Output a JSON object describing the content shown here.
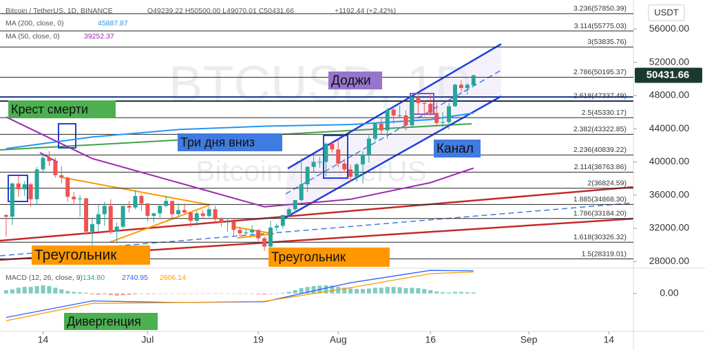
{
  "chart_data": {
    "type": "candlestick",
    "header": {
      "symbol": "Bitcoin / TetherUS, 1D, BINANCE",
      "ohlc": "O49239.22 H50500.00 L49070.01 C50431.66",
      "change": "+1192.44 (+2.42%)"
    },
    "currency": "USDT",
    "watermark": [
      "BTCUSD, 1D",
      "Bitcoin / TetherUS"
    ],
    "last_price_label": "50431.66",
    "up_color": "#26a69a",
    "down_color": "#ef5350",
    "x": [
      "Jun 8",
      "Jun 9",
      "Jun 10",
      "Jun 11",
      "Jun 12",
      "Jun 13",
      "Jun 14",
      "Jun 15",
      "Jun 16",
      "Jun 17",
      "Jun 18",
      "Jun 19",
      "Jun 20",
      "Jun 21",
      "Jun 22",
      "Jun 23",
      "Jun 24",
      "Jun 25",
      "Jun 26",
      "Jun 27",
      "Jun 28",
      "Jun 29",
      "Jun 30",
      "Jul 1",
      "Jul 2",
      "Jul 3",
      "Jul 4",
      "Jul 5",
      "Jul 6",
      "Jul 7",
      "Jul 8",
      "Jul 9",
      "Jul 10",
      "Jul 11",
      "Jul 12",
      "Jul 13",
      "Jul 14",
      "Jul 15",
      "Jul 16",
      "Jul 17",
      "Jul 18",
      "Jul 19",
      "Jul 20",
      "Jul 21",
      "Jul 22",
      "Jul 23",
      "Jul 24",
      "Jul 25",
      "Jul 26",
      "Jul 27",
      "Jul 28",
      "Jul 29",
      "Jul 30",
      "Jul 31",
      "Aug 1",
      "Aug 2",
      "Aug 3",
      "Aug 4",
      "Aug 5",
      "Aug 6",
      "Aug 7",
      "Aug 8",
      "Aug 9",
      "Aug 10",
      "Aug 11",
      "Aug 12",
      "Aug 13",
      "Aug 14",
      "Aug 15",
      "Aug 16",
      "Aug 17",
      "Aug 18",
      "Aug 19",
      "Aug 20",
      "Aug 21",
      "Aug 22",
      "Aug 23"
    ],
    "open": [
      33600,
      33400,
      37400,
      36700,
      37300,
      35500,
      39100,
      40500,
      40100,
      38400,
      38100,
      35800,
      35500,
      35600,
      31600,
      32500,
      33700,
      34700,
      31600,
      32200,
      34700,
      34500,
      35900,
      35000,
      33500,
      33800,
      34700,
      35300,
      33700,
      34200,
      33900,
      32900,
      33800,
      33500,
      34300,
      33100,
      32700,
      32800,
      31800,
      31400,
      31500,
      31800,
      30800,
      29800,
      32100,
      32300,
      33600,
      34300,
      35400,
      37300,
      39400,
      40000,
      40000,
      42200,
      41500,
      39800,
      39100,
      38200,
      39700,
      40900,
      42800,
      44600,
      43800,
      46300,
      45600,
      45600,
      44400,
      47800,
      47100,
      47000,
      45900,
      44700,
      44800,
      46700,
      49300,
      48900,
      49239.22
    ],
    "high": [
      33700,
      37500,
      38400,
      37700,
      37500,
      39400,
      41000,
      41300,
      40500,
      39500,
      38200,
      36400,
      36000,
      35700,
      33300,
      34800,
      35200,
      35500,
      32700,
      34700,
      35300,
      36600,
      36100,
      35000,
      33900,
      34900,
      35900,
      35300,
      35000,
      35000,
      33900,
      34100,
      34200,
      34600,
      34700,
      33300,
      33100,
      33200,
      32200,
      31900,
      32400,
      31900,
      31000,
      32900,
      32600,
      33600,
      34500,
      35400,
      40500,
      39500,
      40900,
      40600,
      42300,
      42400,
      42600,
      40400,
      39700,
      39900,
      41300,
      43200,
      44700,
      45300,
      46500,
      46700,
      46800,
      46200,
      47900,
      48200,
      47400,
      48100,
      47200,
      46000,
      47100,
      49400,
      49800,
      49500,
      50500
    ],
    "low": [
      31000,
      32400,
      35800,
      35900,
      34600,
      34800,
      38800,
      39500,
      38100,
      37400,
      35200,
      34800,
      33400,
      31300,
      28800,
      31700,
      32300,
      31300,
      30200,
      32000,
      33900,
      34300,
      34100,
      32800,
      32700,
      33300,
      34500,
      33200,
      33500,
      33800,
      32100,
      32300,
      33100,
      33300,
      32700,
      32200,
      31600,
      31100,
      31000,
      31200,
      31100,
      30400,
      29300,
      29500,
      31700,
      32000,
      33400,
      33900,
      35200,
      36400,
      38800,
      39300,
      38300,
      41100,
      39400,
      38700,
      37600,
      37600,
      37400,
      39900,
      42500,
      43400,
      42800,
      44600,
      45400,
      43800,
      44200,
      45800,
      45500,
      45600,
      44400,
      44200,
      43900,
      46600,
      48300,
      48100,
      49070.01
    ],
    "close": [
      33400,
      37400,
      36700,
      37300,
      35500,
      39100,
      40500,
      40100,
      38400,
      38100,
      35800,
      35500,
      35600,
      31600,
      32500,
      33700,
      34700,
      31600,
      32200,
      34700,
      34500,
      35900,
      35000,
      33500,
      33800,
      34700,
      35300,
      33700,
      34200,
      33900,
      32900,
      33800,
      33500,
      34300,
      33100,
      32700,
      32800,
      31800,
      31400,
      31500,
      31800,
      30800,
      29800,
      32100,
      32300,
      33600,
      34300,
      35400,
      37300,
      39400,
      40000,
      40000,
      42200,
      41500,
      39800,
      39100,
      38200,
      39700,
      40900,
      42800,
      44600,
      43800,
      46300,
      45600,
      45600,
      44400,
      47800,
      47100,
      47000,
      45900,
      44700,
      44800,
      46700,
      49300,
      48900,
      49300,
      50431.66
    ],
    "ylim": [
      27200,
      59500
    ],
    "yticks": [
      {
        "value": 28000,
        "label": "28000.00"
      },
      {
        "value": 32000,
        "label": "32000.00"
      },
      {
        "value": 36000,
        "label": "36000.00"
      },
      {
        "value": 40000,
        "label": "40000.00"
      },
      {
        "value": 44000,
        "label": "44000.00"
      },
      {
        "value": 48000,
        "label": "48000.00"
      },
      {
        "value": 52000,
        "label": "52000.00"
      },
      {
        "value": 56000,
        "label": "56000.00"
      }
    ],
    "xlim": [
      "Jun 7",
      "Sep 18"
    ],
    "xticks": [
      {
        "value": "Jun 14",
        "label": "14"
      },
      {
        "value": "Jul 1",
        "label": "Jul"
      },
      {
        "value": "Jul 19",
        "label": "19"
      },
      {
        "value": "Aug 1",
        "label": "Aug"
      },
      {
        "value": "Aug 16",
        "label": "16"
      },
      {
        "value": "Sep 1",
        "label": "Sep"
      },
      {
        "value": "Sep 14",
        "label": "14"
      }
    ],
    "series": [
      {
        "name": "MA (200, close, 0)",
        "color": "#2196f3",
        "legend_value": "45887.87",
        "x": [
          "Jun 8",
          "Jun 22",
          "Jul 6",
          "Jul 20",
          "Aug 3",
          "Aug 16",
          "Aug 23"
        ],
        "values": [
          41600,
          43000,
          43900,
          44300,
          44500,
          45100,
          45887.87
        ]
      },
      {
        "name": "MA (50, close, 0)",
        "color": "#9c27b0",
        "legend_value": "39252.37",
        "x": [
          "Jun 8",
          "Jun 22",
          "Jul 6",
          "Jul 20",
          "Aug 3",
          "Aug 16",
          "Aug 23"
        ],
        "values": [
          45400,
          40400,
          37500,
          34600,
          35500,
          37500,
          39252.37
        ]
      }
    ],
    "fib_levels": [
      {
        "label": "3.236(57850.39)",
        "value": 57850.39
      },
      {
        "label": "3.114(55775.03)",
        "value": 55775.03
      },
      {
        "label": "3(53835.76)",
        "value": 53835.76
      },
      {
        "label": "2.786(50195.37)",
        "value": 50195.37
      },
      {
        "label": "2.618(47337.49)",
        "value": 47337.49
      },
      {
        "label": "2.5(45330.17)",
        "value": 45330.17
      },
      {
        "label": "2.382(43322.85)",
        "value": 43322.85
      },
      {
        "label": "2.236(40839.22)",
        "value": 40839.22
      },
      {
        "label": "2.114(38763.86)",
        "value": 38763.86
      },
      {
        "label": "2(36824.59)",
        "value": 36824.59
      },
      {
        "label": "1.885(34868.30)",
        "value": 34868.3
      },
      {
        "label": "1.786(33184.20)",
        "value": 33184.2
      },
      {
        "label": "1.618(30326.32)",
        "value": 30326.32
      },
      {
        "label": "1.5(28319.01)",
        "value": 28319.01
      }
    ],
    "annotations": [
      {
        "text": "Доджи",
        "color": "#9575cd"
      },
      {
        "text": "Крест смерти",
        "color": "#4caf50"
      },
      {
        "text": "Три дня вниз",
        "color": "#3f7be0"
      },
      {
        "text": "Канал",
        "color": "#3f7be0"
      },
      {
        "text": "Треугольник",
        "color": "#ff9800"
      },
      {
        "text": "Треугольник",
        "color": "#ff9800"
      },
      {
        "text": "Дивергенция",
        "color": "#4caf50"
      }
    ],
    "macd": {
      "name": "MACD (12, 26, close, 9)",
      "legend_values": [
        {
          "text": "134.80",
          "color": "#26a69a"
        },
        {
          "text": "2740.95",
          "color": "#2962ff"
        },
        {
          "text": "2606.14",
          "color": "#ff9800"
        }
      ],
      "ylim": [
        -4600,
        2900
      ],
      "yticks": [
        {
          "value": 0,
          "label": "0.00"
        }
      ],
      "histogram": [
        400,
        500,
        700,
        800,
        800,
        900,
        1000,
        900,
        700,
        500,
        300,
        200,
        150,
        100,
        -100,
        -150,
        -100,
        -200,
        -250,
        -200,
        -150,
        -100,
        -50,
        -80,
        -60,
        -20,
        0,
        -30,
        -20,
        -30,
        -50,
        -40,
        0,
        30,
        20,
        0,
        20,
        -10,
        -30,
        -40,
        -50,
        -80,
        -120,
        -60,
        0,
        80,
        200,
        400,
        650,
        800,
        900,
        950,
        1000,
        950,
        800,
        700,
        600,
        550,
        550,
        600,
        700,
        700,
        800,
        800,
        750,
        650,
        700,
        650,
        550,
        400,
        250,
        150,
        120,
        200,
        200,
        150,
        134.8
      ],
      "series": [
        {
          "color": "#2962ff",
          "x": [
            "Jun 8",
            "Jun 22",
            "Jul 6",
            "Jul 20",
            "Aug 3",
            "Aug 16",
            "Aug 23"
          ],
          "values": [
            -2900,
            -900,
            -1100,
            -1000,
            1300,
            2800,
            2740.95
          ]
        },
        {
          "color": "#ff9800",
          "x": [
            "Jun 8",
            "Jun 22",
            "Jul 6",
            "Jul 20",
            "Aug 3",
            "Aug 16",
            "Aug 23"
          ],
          "values": [
            -3300,
            -1200,
            -1100,
            -950,
            700,
            2400,
            2606.14
          ]
        }
      ]
    }
  }
}
